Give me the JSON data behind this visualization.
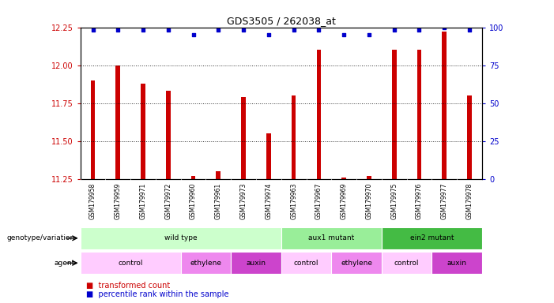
{
  "title": "GDS3505 / 262038_at",
  "samples": [
    "GSM179958",
    "GSM179959",
    "GSM179971",
    "GSM179972",
    "GSM179960",
    "GSM179961",
    "GSM179973",
    "GSM179974",
    "GSM179963",
    "GSM179967",
    "GSM179969",
    "GSM179970",
    "GSM179975",
    "GSM179976",
    "GSM179977",
    "GSM179978"
  ],
  "transformed_counts": [
    11.9,
    12.0,
    11.88,
    11.83,
    11.27,
    11.3,
    11.79,
    11.55,
    11.8,
    12.1,
    11.26,
    11.27,
    12.1,
    12.1,
    12.22,
    11.8
  ],
  "percentile_ranks": [
    98,
    98,
    98,
    98,
    95,
    98,
    98,
    95,
    98,
    98,
    95,
    95,
    98,
    98,
    100,
    98
  ],
  "ylim_left": [
    11.25,
    12.25
  ],
  "ylim_right": [
    0,
    100
  ],
  "yticks_left": [
    11.25,
    11.5,
    11.75,
    12.0,
    12.25
  ],
  "yticks_right": [
    0,
    25,
    50,
    75,
    100
  ],
  "bar_color": "#cc0000",
  "dot_color": "#0000cc",
  "background_color": "#ffffff",
  "genotype_groups": [
    {
      "label": "wild type",
      "start": 0,
      "end": 8,
      "color": "#ccffcc"
    },
    {
      "label": "aux1 mutant",
      "start": 8,
      "end": 12,
      "color": "#99ee99"
    },
    {
      "label": "ein2 mutant",
      "start": 12,
      "end": 16,
      "color": "#44bb44"
    }
  ],
  "agent_groups": [
    {
      "label": "control",
      "start": 0,
      "end": 4,
      "color": "#ffccff"
    },
    {
      "label": "ethylene",
      "start": 4,
      "end": 6,
      "color": "#ee88ee"
    },
    {
      "label": "auxin",
      "start": 6,
      "end": 8,
      "color": "#cc44cc"
    },
    {
      "label": "control",
      "start": 8,
      "end": 10,
      "color": "#ffccff"
    },
    {
      "label": "ethylene",
      "start": 10,
      "end": 12,
      "color": "#ee88ee"
    },
    {
      "label": "control",
      "start": 12,
      "end": 14,
      "color": "#ffccff"
    },
    {
      "label": "auxin",
      "start": 14,
      "end": 16,
      "color": "#cc44cc"
    }
  ],
  "tick_color_left": "#cc0000",
  "tick_color_right": "#0000cc",
  "grid_yticks": [
    11.5,
    11.75,
    12.0
  ],
  "sample_bg_color": "#dddddd"
}
